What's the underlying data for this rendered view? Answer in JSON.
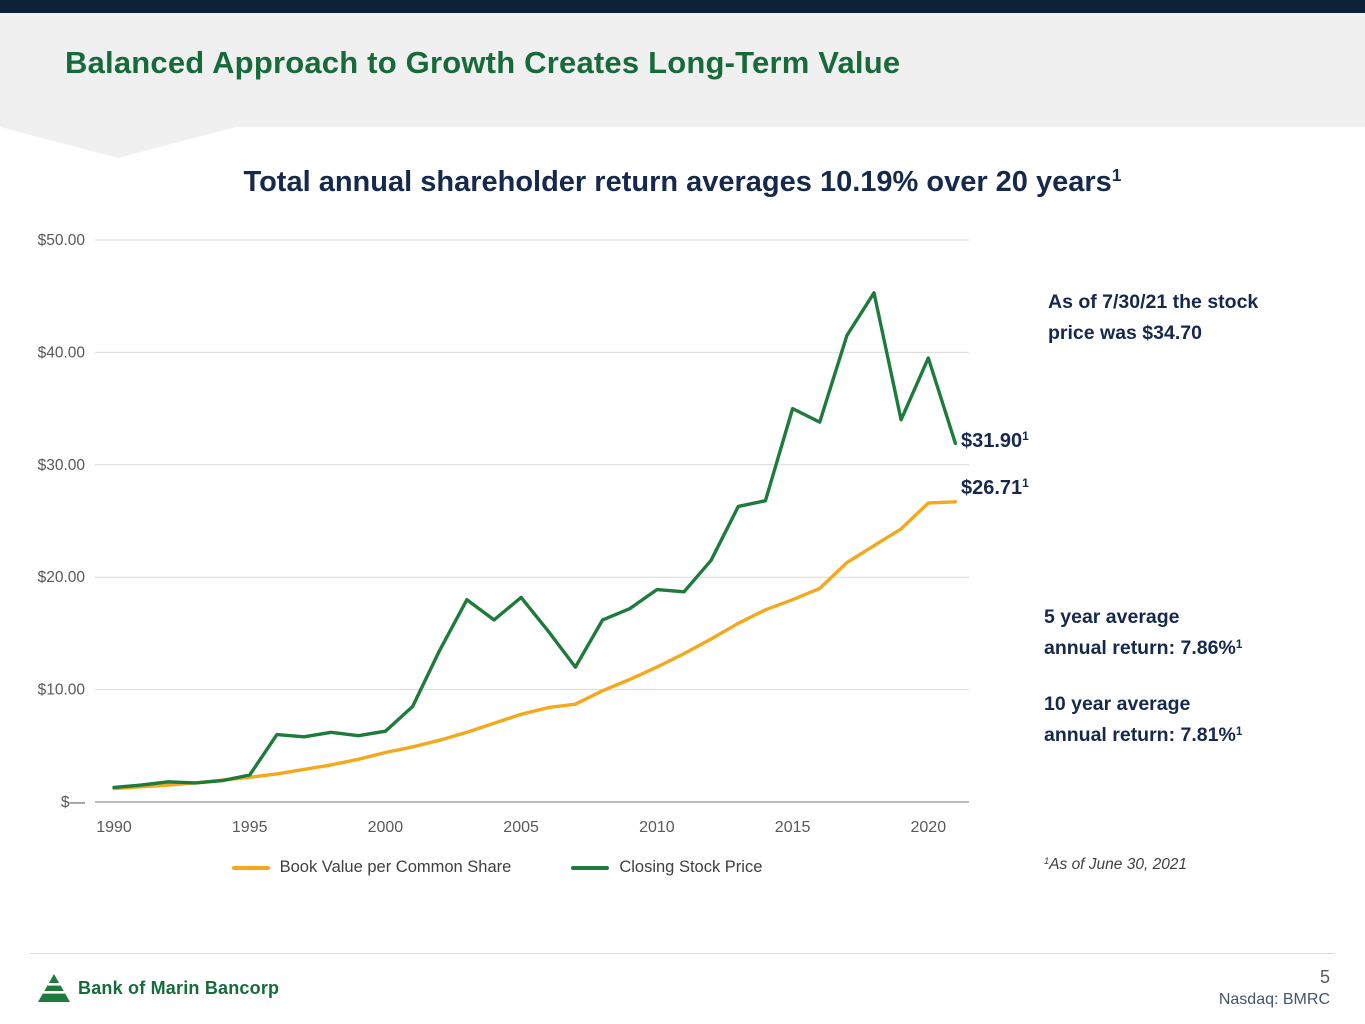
{
  "header": {
    "title": "Balanced Approach to Growth Creates Long-Term Value"
  },
  "chart_title": {
    "text": "Total annual shareholder return averages 10.19% over 20 years",
    "sup": "1"
  },
  "annotations": {
    "as_of_line1": "As of 7/30/21 the stock",
    "as_of_line2": "price was $34.70",
    "stock_end_label": "$31.90",
    "stock_end_sup": "1",
    "book_end_label": "$26.71",
    "book_end_sup": "1",
    "five_year_line1": "5 year average",
    "five_year_line2": "annual return: 7.86%",
    "five_year_sup": "1",
    "ten_year_line1": "10 year average",
    "ten_year_line2": "annual return: 7.81%",
    "ten_year_sup": "1",
    "footnote_sup": "1",
    "footnote_text": "As of June 30, 2021"
  },
  "legend": {
    "book_value": "Book Value per Common Share",
    "stock_price": "Closing Stock Price"
  },
  "footer": {
    "logo_text": "Bank of Marin Bancorp",
    "page_number": "5",
    "ticker": "Nasdaq: BMRC"
  },
  "chart_data": {
    "type": "line",
    "title": "Total annual shareholder return averages 10.19% over 20 years",
    "x": [
      1990,
      1991,
      1992,
      1993,
      1994,
      1995,
      1996,
      1997,
      1998,
      1999,
      2000,
      2001,
      2002,
      2003,
      2004,
      2005,
      2006,
      2007,
      2008,
      2009,
      2010,
      2011,
      2012,
      2013,
      2014,
      2015,
      2016,
      2017,
      2018,
      2019,
      2020,
      2021
    ],
    "series": [
      {
        "name": "Book Value per Common Share",
        "color": "#F5A81C",
        "values": [
          1.2,
          1.35,
          1.5,
          1.7,
          1.95,
          2.2,
          2.5,
          2.9,
          3.3,
          3.8,
          4.4,
          4.9,
          5.5,
          6.2,
          7.0,
          7.8,
          8.4,
          8.7,
          9.9,
          10.9,
          12.0,
          13.2,
          14.5,
          15.9,
          17.1,
          18.0,
          19.0,
          21.3,
          22.8,
          24.3,
          26.6,
          26.71
        ]
      },
      {
        "name": "Closing Stock Price",
        "color": "#1E7B3C",
        "values": [
          1.3,
          1.5,
          1.8,
          1.7,
          1.9,
          2.4,
          6.0,
          5.8,
          6.2,
          5.9,
          6.3,
          8.5,
          13.5,
          18.0,
          16.2,
          18.2,
          15.2,
          12.0,
          16.2,
          17.2,
          18.9,
          18.7,
          21.5,
          26.3,
          26.8,
          35.0,
          33.8,
          41.5,
          45.3,
          34.0,
          39.5,
          31.9
        ]
      }
    ],
    "xticks": [
      1990,
      1995,
      2000,
      2005,
      2010,
      2015,
      2020
    ],
    "yticks": [
      "$—",
      "$10.00",
      "$20.00",
      "$30.00",
      "$40.00",
      "$50.00"
    ],
    "ylim": [
      0,
      50
    ],
    "xlabel": "",
    "ylabel": "",
    "grid": true,
    "legend_position": "bottom",
    "end_labels": [
      {
        "series": "Closing Stock Price",
        "text": "$31.90"
      },
      {
        "series": "Book Value per Common Share",
        "text": "$26.71"
      }
    ]
  }
}
